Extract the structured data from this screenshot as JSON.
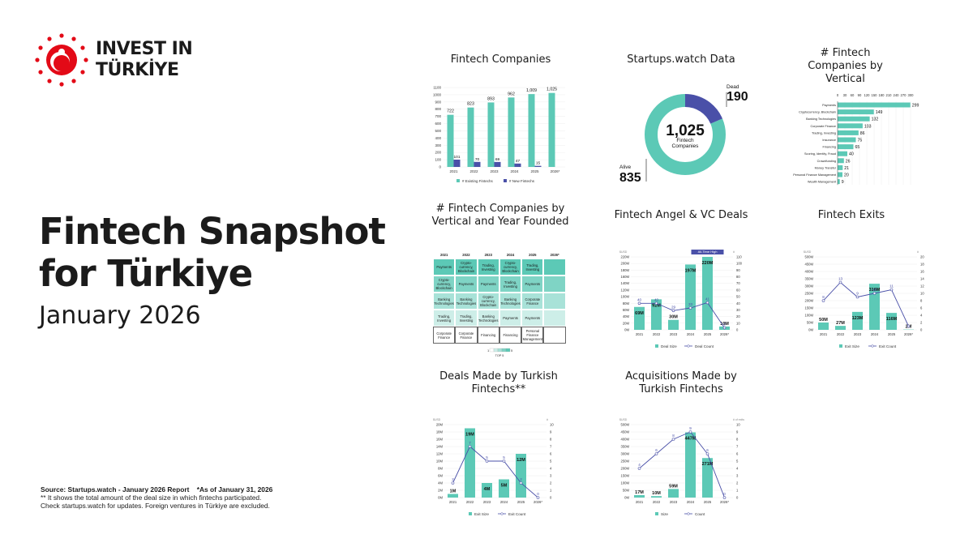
{
  "brand": {
    "line1": "INVEST IN",
    "line2": "TÜRKİYE",
    "red": "#e30a17"
  },
  "title": "Fintech Snapshot for Türkiye",
  "subtitle": "January 2026",
  "source": {
    "line1": "Source: Startups.watch - January 2026 Report",
    "asof": "*As of January 31, 2026",
    "line2": "** It shows the total amount of the deal size in which fintechs participated.",
    "line3": "Check startups.watch for updates. Foreign ventures in Türkiye are excluded."
  },
  "colors": {
    "teal": "#5cc9b6",
    "navy": "#4a50a8",
    "text": "#1b1b1b"
  },
  "panels": {
    "companies": "Fintech Companies",
    "startups": "Startups.watch Data",
    "vertical": "# Fintech Companies by Vertical",
    "vertical_year": "# Fintech Companies by Vertical and Year Founded",
    "angel_vc": "Fintech Angel & VC Deals",
    "exits": "Fintech Exits",
    "deals_made": "Deals Made by Turkish Fintechs**",
    "acquisitions": "Acquisitions Made by Turkish Fintechs"
  },
  "chart_data": [
    {
      "id": "companies",
      "type": "bar",
      "categories": [
        "2021",
        "2022",
        "2023",
        "2024",
        "2025",
        "2026*"
      ],
      "series": [
        {
          "name": "# Existing Fintechs",
          "values": [
            722,
            823,
            893,
            962,
            1009,
            1025
          ]
        },
        {
          "name": "# New Fintechs",
          "values": [
            101,
            70,
            69,
            47,
            15,
            null
          ]
        }
      ],
      "ylim": [
        0,
        1100
      ],
      "yticks": [
        0,
        100,
        200,
        300,
        400,
        500,
        600,
        700,
        800,
        900,
        1000,
        1100
      ],
      "data_labels": [
        [
          "722",
          "823",
          "893",
          "962",
          "1,009",
          "1,025"
        ],
        [
          "101",
          "70",
          "69",
          "47",
          "15",
          ""
        ]
      ]
    },
    {
      "id": "startups",
      "type": "pie",
      "slices": [
        {
          "name": "Alive",
          "value": 835
        },
        {
          "name": "Dead",
          "value": 190
        }
      ],
      "center_value": "1,025",
      "center_label": "Fintech Companies",
      "labels": {
        "alive_name": "Alive",
        "alive_value": "835",
        "dead_name": "Dead",
        "dead_value": "190"
      }
    },
    {
      "id": "vertical",
      "type": "bar",
      "orientation": "horizontal",
      "categories": [
        "Payments",
        "Cryptocurrency, Blockchain",
        "Banking Technologies",
        "Corporate Finance",
        "Trading, Investing",
        "Insurance",
        "Financing",
        "Scoring, Identity, Fraud",
        "Crowdfunding",
        "Money Transfer",
        "Personal Finance Management",
        "Wealth Management"
      ],
      "values": [
        299,
        149,
        132,
        103,
        86,
        75,
        65,
        40,
        26,
        21,
        20,
        9
      ],
      "xlim": [
        0,
        300
      ],
      "xticks": [
        0,
        30,
        60,
        90,
        120,
        150,
        180,
        210,
        240,
        270,
        300
      ]
    },
    {
      "id": "vertical_year",
      "type": "heatmap",
      "columns": [
        "2021",
        "2022",
        "2023",
        "2024",
        "2025",
        "2026*"
      ],
      "rows": [
        [
          "Payments",
          "Crypto-currency, Blockchain",
          "Trading, Investing",
          "Crypto-currency, Blockchain",
          "Trading, Investing",
          ""
        ],
        [
          "Crypto-currency, Blockchain",
          "Payments",
          "Payments",
          "Trading, Investing",
          "Payments",
          ""
        ],
        [
          "Banking Technologies",
          "Banking Technologies",
          "Crypto-currency, Blockchain",
          "Banking Technologies",
          "Corporate Finance",
          ""
        ],
        [
          "Trading, Investing",
          "Trading, Investing",
          "Banking Technologies",
          "Payments",
          "Payments",
          ""
        ],
        [
          "Corporate Finance",
          "Corporate Finance",
          "Financing",
          "Financing",
          "Personal Finance Management",
          ""
        ]
      ],
      "legend": {
        "min": "1",
        "max": "5",
        "label": "TOP 5"
      }
    },
    {
      "id": "angel_vc",
      "type": "bar",
      "categories": [
        "2021",
        "2022",
        "2023",
        "2024",
        "2025",
        "2026*"
      ],
      "series": [
        {
          "name": "Deal Size",
          "type": "bar",
          "values": [
            69,
            92,
            30,
            197,
            220,
            10
          ],
          "labels": [
            "69M",
            "92M",
            "30M",
            "197M",
            "220M",
            "10M"
          ]
        },
        {
          "name": "Deal Count",
          "type": "line",
          "values": [
            40,
            40,
            29,
            33,
            41,
            3
          ],
          "labels": [
            "40",
            "40",
            "29",
            "33",
            "41",
            "3"
          ]
        }
      ],
      "ylim": [
        0,
        220
      ],
      "yticks": [
        0,
        20,
        40,
        60,
        80,
        100,
        120,
        140,
        160,
        180,
        200,
        220
      ],
      "y2lim": [
        0,
        110
      ],
      "y2ticks": [
        0,
        10,
        20,
        30,
        40,
        50,
        60,
        70,
        80,
        90,
        100,
        110
      ],
      "ylabel": "$USD",
      "y2label": "#",
      "annotation": "All-Time High"
    },
    {
      "id": "exits",
      "type": "bar",
      "categories": [
        "2021",
        "2022",
        "2023",
        "2024",
        "2025",
        "2026*"
      ],
      "series": [
        {
          "name": "Exit Size",
          "type": "bar",
          "values": [
            50,
            27,
            123,
            316,
            116,
            2
          ],
          "labels": [
            "50M",
            "27M",
            "123M",
            "316M",
            "116M",
            "2M"
          ]
        },
        {
          "name": "Exit Count",
          "type": "line",
          "values": [
            8,
            13,
            9,
            10,
            11,
            1
          ],
          "labels": [
            "8",
            "13",
            "9",
            "10",
            "11",
            ""
          ]
        }
      ],
      "ylim": [
        0,
        500
      ],
      "yticks": [
        0,
        50,
        100,
        150,
        200,
        250,
        300,
        350,
        400,
        450,
        500
      ],
      "y2lim": [
        0,
        20
      ],
      "y2ticks": [
        0,
        2,
        4,
        6,
        8,
        10,
        12,
        14,
        16,
        18,
        20
      ],
      "ylabel": "$USD",
      "y2label": "#"
    },
    {
      "id": "deals_made",
      "type": "bar",
      "categories": [
        "2021",
        "2022",
        "2023",
        "2024",
        "2025",
        "2026*"
      ],
      "series": [
        {
          "name": "Exit Size",
          "type": "bar",
          "values": [
            1,
            19,
            4,
            5,
            12,
            0
          ],
          "labels": [
            "1M",
            "19M",
            "4M",
            "5M",
            "12M",
            ""
          ]
        },
        {
          "name": "Exit Count",
          "type": "line",
          "values": [
            2,
            7,
            5,
            5,
            2,
            0
          ],
          "labels": [
            "2",
            "7",
            "5",
            "5",
            "2",
            "0"
          ]
        }
      ],
      "ylim": [
        0,
        20
      ],
      "yticks": [
        0,
        2,
        4,
        6,
        8,
        10,
        12,
        14,
        16,
        18,
        20
      ],
      "y2lim": [
        0,
        10
      ],
      "y2ticks": [
        0,
        1,
        2,
        3,
        4,
        5,
        6,
        7,
        8,
        9,
        10
      ],
      "ylabel": "$USD",
      "y2label": "#"
    },
    {
      "id": "acquisitions",
      "type": "bar",
      "categories": [
        "2021",
        "2022",
        "2023",
        "2024",
        "2025",
        "2026*"
      ],
      "series": [
        {
          "name": "Size",
          "type": "bar",
          "values": [
            17,
            10,
            59,
            447,
            271,
            0
          ],
          "labels": [
            "17M",
            "10M",
            "59M",
            "447M",
            "271M",
            ""
          ]
        },
        {
          "name": "Count",
          "type": "line",
          "values": [
            4,
            6,
            8,
            9,
            6,
            0
          ],
          "labels": [
            "4",
            "6",
            "8",
            "9",
            "6",
            "0"
          ]
        }
      ],
      "ylim": [
        0,
        500
      ],
      "yticks": [
        0,
        50,
        100,
        150,
        200,
        250,
        300,
        350,
        400,
        450,
        500
      ],
      "y2lim": [
        0,
        10
      ],
      "y2ticks": [
        0,
        1,
        2,
        3,
        4,
        5,
        6,
        7,
        8,
        9,
        10
      ],
      "ylabel": "$USD",
      "y2label": "# of exits"
    }
  ]
}
